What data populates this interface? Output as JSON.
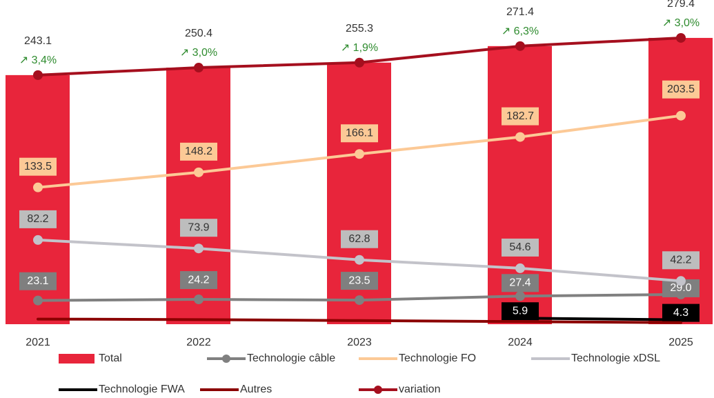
{
  "chart_data": {
    "type": "combo",
    "categories": [
      "2021",
      "2022",
      "2023",
      "2024",
      "2025"
    ],
    "ylim": [
      0,
      300
    ],
    "series": [
      {
        "name": "Total",
        "type": "bar",
        "color": "#e8253b",
        "values": [
          243.1,
          250.4,
          255.3,
          271.4,
          279.4
        ]
      },
      {
        "name": "Technologie câble",
        "type": "line",
        "color": "#808080",
        "values": [
          23.1,
          24.2,
          23.5,
          27.4,
          29.0
        ],
        "value_labels": [
          "23.1",
          "24.2",
          "23.5",
          "27.4",
          "29.0"
        ]
      },
      {
        "name": "Technologie FO",
        "type": "line",
        "color": "#fcc996",
        "values": [
          133.5,
          148.2,
          166.1,
          182.7,
          203.5
        ]
      },
      {
        "name": "Technologie xDSL",
        "type": "line",
        "color": "#c3c3ca",
        "values": [
          82.2,
          73.9,
          62.8,
          54.6,
          42.2
        ]
      },
      {
        "name": "Technologie FWA",
        "type": "line",
        "color": "#000000",
        "values": [
          null,
          null,
          null,
          5.9,
          4.3
        ]
      },
      {
        "name": "Autres",
        "type": "line",
        "color": "#8b0000",
        "values": [
          5.0,
          4.5,
          3.5,
          2.5,
          1.5
        ]
      },
      {
        "name": "variation",
        "type": "line",
        "color": "#a50f1e",
        "values": [
          3.4,
          3.0,
          1.9,
          6.3,
          3.0
        ],
        "value_labels": [
          "↗ 3,4%",
          "↗ 3,0%",
          "↗ 1,9%",
          "↗ 6,3%",
          "↗ 3,0%"
        ],
        "label_color": "#2e8b2e"
      }
    ]
  }
}
